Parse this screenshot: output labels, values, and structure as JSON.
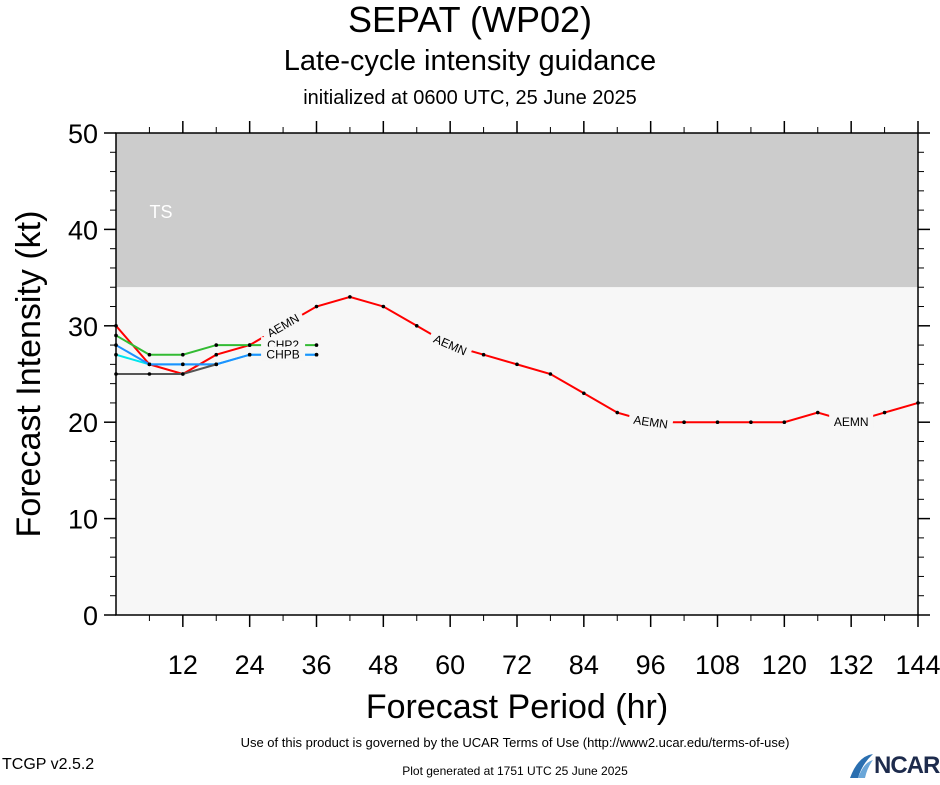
{
  "header": {
    "title": "SEPAT (WP02)",
    "subtitle": "Late-cycle intensity guidance",
    "init": "initialized at 0600 UTC, 25 June 2025"
  },
  "footer": {
    "terms": "Use of this product is governed by the UCAR Terms of Use (http://www2.ucar.edu/terms-of-use)",
    "version": "TCGP v2.5.2",
    "generated": "Plot generated at 1751 UTC   25 June 2025",
    "logo": "NCAR"
  },
  "chart_data": {
    "type": "line",
    "title": "SEPAT (WP02)",
    "xlabel": "Forecast Period (hr)",
    "ylabel": "Forecast Intensity (kt)",
    "xlim": [
      0,
      144
    ],
    "ylim": [
      0,
      50
    ],
    "xticks": [
      12,
      24,
      36,
      48,
      60,
      72,
      84,
      96,
      108,
      120,
      132,
      144
    ],
    "yticks": [
      0,
      10,
      20,
      30,
      40,
      50
    ],
    "bands": [
      {
        "label": "TS",
        "from": 34,
        "to": 50,
        "color": "#cccccc"
      },
      {
        "label": "",
        "from": 0,
        "to": 34,
        "color": "#f7f7f7"
      }
    ],
    "series": [
      {
        "name": "AEMN",
        "color": "#ff0000",
        "x": [
          0,
          6,
          12,
          18,
          24,
          30,
          36,
          42,
          48,
          54,
          60,
          66,
          72,
          78,
          84,
          90,
          96,
          102,
          108,
          114,
          120,
          126,
          132,
          138,
          144
        ],
        "y": [
          30,
          26,
          25,
          27,
          28,
          30,
          32,
          33,
          32,
          30,
          28,
          27,
          26,
          25,
          23,
          21,
          20,
          20,
          20,
          20,
          20,
          21,
          20,
          21,
          22
        ],
        "label_x": [
          30,
          60,
          96,
          132
        ]
      },
      {
        "name": "CHP2",
        "color": "#33bb33",
        "x": [
          0,
          6,
          12,
          18,
          24,
          30,
          36
        ],
        "y": [
          29,
          27,
          27,
          28,
          28,
          28,
          28
        ],
        "label_x": [
          30
        ]
      },
      {
        "name": "CHPB",
        "color": "#00e5ee",
        "x": [
          0,
          6,
          12,
          18,
          24,
          30,
          36
        ],
        "y": [
          27,
          26,
          26,
          26,
          27,
          27,
          27
        ],
        "label_x": [
          30
        ]
      },
      {
        "name": "CHPB",
        "color": "#1e90ff",
        "x": [
          0,
          6,
          12,
          18,
          24,
          30,
          36
        ],
        "y": [
          28,
          26,
          26,
          26,
          27,
          27,
          27
        ],
        "label_x": [
          30
        ]
      },
      {
        "name": "",
        "color": "#555555",
        "x": [
          0,
          6,
          12,
          18
        ],
        "y": [
          25,
          25,
          25,
          26
        ],
        "label_x": []
      }
    ]
  }
}
